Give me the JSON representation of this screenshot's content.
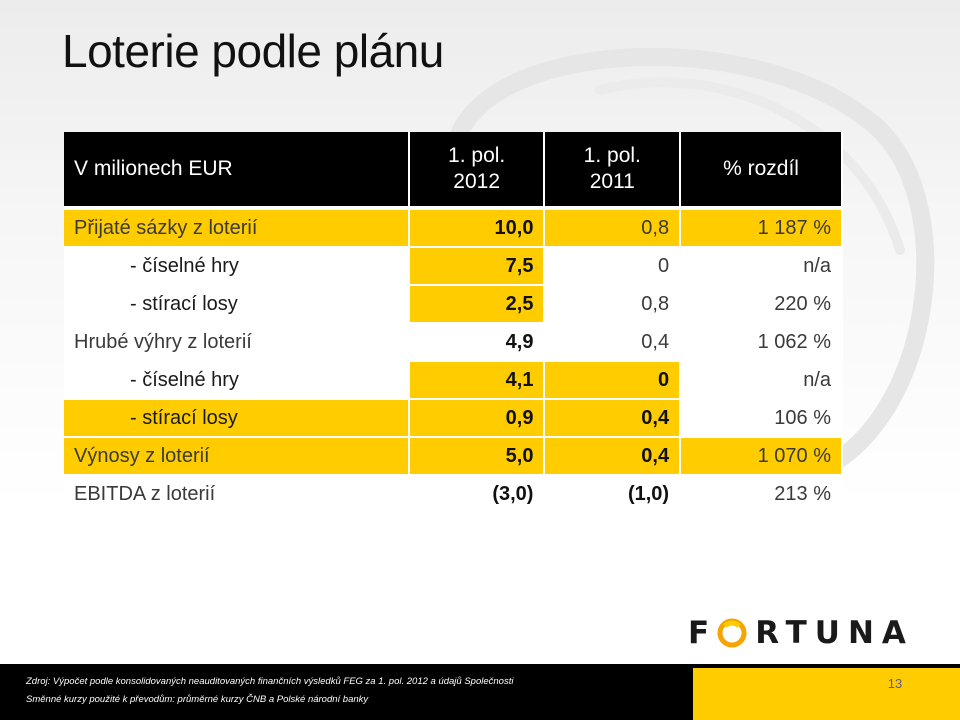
{
  "slide": {
    "title": "Loterie podle plánu",
    "page_number": "13"
  },
  "table": {
    "headers": {
      "label": "V milionech EUR",
      "col1_line1": "1. pol.",
      "col1_line2": "2012",
      "col2_line1": "1. pol.",
      "col2_line2": "2011",
      "col3": "% rozdíl"
    },
    "rows": [
      {
        "label": "Přijaté sázky z loterií",
        "v2012": "10,0",
        "v2011": "0,8",
        "diff": "1 187 %"
      },
      {
        "label": "- číselné hry",
        "v2012": "7,5",
        "v2011": "0",
        "diff": "n/a"
      },
      {
        "label": "- stírací losy",
        "v2012": "2,5",
        "v2011": "0,8",
        "diff": "220 %"
      },
      {
        "label": "Hrubé výhry z loterií",
        "v2012": "4,9",
        "v2011": "0,4",
        "diff": "1 062 %"
      },
      {
        "label": "- číselné hry",
        "v2012": "4,1",
        "v2011": "0",
        "diff": "n/a"
      },
      {
        "label": "- stírací losy",
        "v2012": "0,9",
        "v2011": "0,4",
        "diff": "106 %"
      },
      {
        "label": "Výnosy z loterií",
        "v2012": "5,0",
        "v2011": "0,4",
        "diff": "1 070 %"
      },
      {
        "label": "EBITDA z loterií",
        "v2012": "(3,0)",
        "v2011": "(1,0)",
        "diff": "213 %"
      }
    ]
  },
  "logo": {
    "text_left": "F",
    "text_right": "RTUNA",
    "full_name": "FORTUNA"
  },
  "footer": {
    "source_line": "Zdroj: Výpočet podle konsolidovaných neauditovaných finančních výsledků FEG za 1. pol. 2012 a údajů Společnosti",
    "rates_line": "Směnné kurzy použité k převodům: průměrné kurzy ČNB a Polské národní banky"
  },
  "colors": {
    "accent_yellow": "#ffcc00",
    "header_black": "#000000",
    "footer_black": "#000000"
  }
}
